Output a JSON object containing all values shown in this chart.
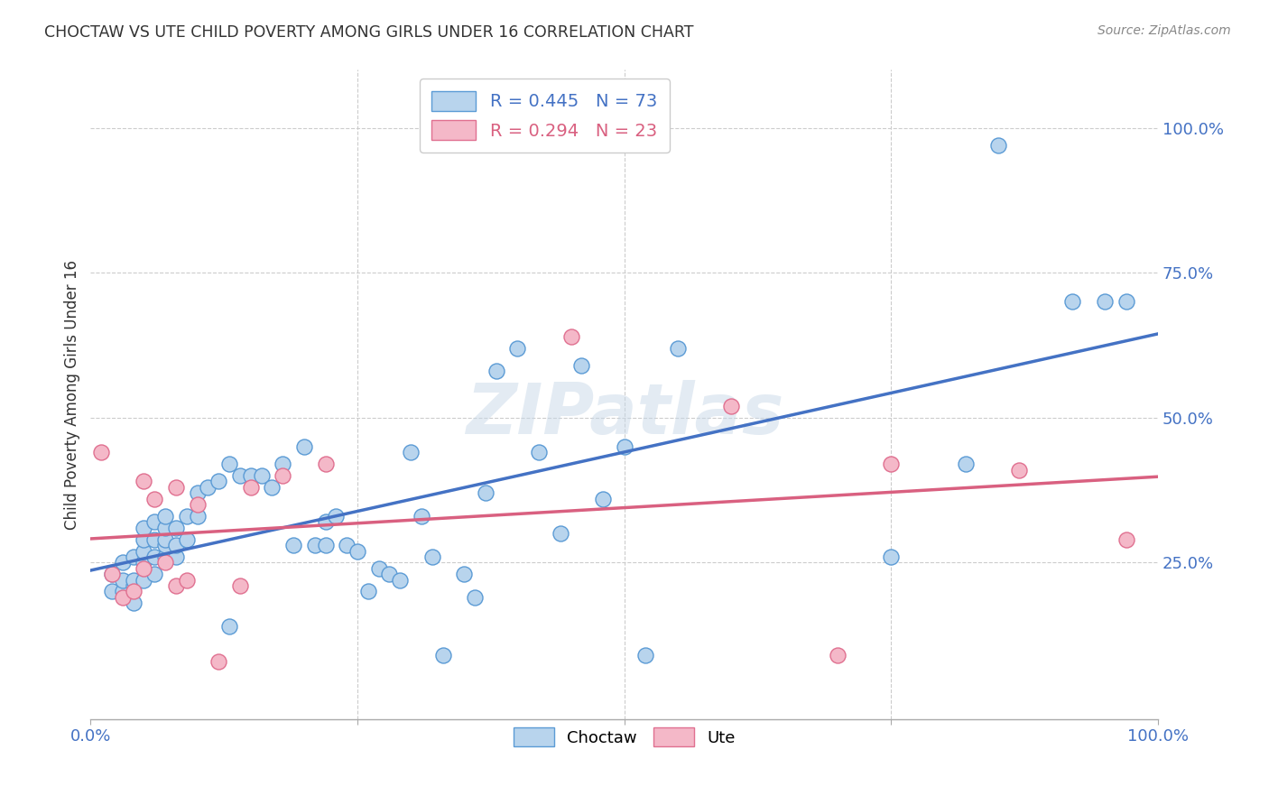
{
  "title": "CHOCTAW VS UTE CHILD POVERTY AMONG GIRLS UNDER 16 CORRELATION CHART",
  "source": "Source: ZipAtlas.com",
  "ylabel": "Child Poverty Among Girls Under 16",
  "x_tick_labels": [
    "0.0%",
    "",
    "",
    "",
    "100.0%"
  ],
  "y_tick_labels": [
    "25.0%",
    "50.0%",
    "75.0%",
    "100.0%"
  ],
  "y_ticks": [
    0.25,
    0.5,
    0.75,
    1.0
  ],
  "xlim": [
    0.0,
    1.0
  ],
  "ylim": [
    -0.02,
    1.1
  ],
  "choctaw_color": "#b8d4ed",
  "choctaw_edge": "#5b9bd5",
  "ute_color": "#f4b8c8",
  "ute_edge": "#e07090",
  "blue_line_color": "#4472c4",
  "pink_line_color": "#d96080",
  "R_choctaw": 0.445,
  "N_choctaw": 73,
  "R_ute": 0.294,
  "N_ute": 23,
  "watermark": "ZIPatlas",
  "choctaw_x": [
    0.02,
    0.02,
    0.03,
    0.03,
    0.03,
    0.04,
    0.04,
    0.04,
    0.04,
    0.05,
    0.05,
    0.05,
    0.05,
    0.05,
    0.06,
    0.06,
    0.06,
    0.06,
    0.07,
    0.07,
    0.07,
    0.07,
    0.07,
    0.08,
    0.08,
    0.08,
    0.09,
    0.09,
    0.1,
    0.1,
    0.11,
    0.12,
    0.13,
    0.13,
    0.14,
    0.15,
    0.16,
    0.17,
    0.18,
    0.19,
    0.2,
    0.21,
    0.22,
    0.22,
    0.23,
    0.24,
    0.25,
    0.26,
    0.27,
    0.28,
    0.29,
    0.3,
    0.31,
    0.32,
    0.33,
    0.35,
    0.36,
    0.37,
    0.38,
    0.4,
    0.42,
    0.44,
    0.46,
    0.48,
    0.5,
    0.52,
    0.55,
    0.75,
    0.82,
    0.85,
    0.92,
    0.95,
    0.97
  ],
  "choctaw_y": [
    0.2,
    0.23,
    0.2,
    0.22,
    0.25,
    0.18,
    0.21,
    0.22,
    0.26,
    0.22,
    0.25,
    0.27,
    0.29,
    0.31,
    0.23,
    0.26,
    0.29,
    0.32,
    0.26,
    0.28,
    0.29,
    0.31,
    0.33,
    0.26,
    0.28,
    0.31,
    0.29,
    0.33,
    0.33,
    0.37,
    0.38,
    0.39,
    0.42,
    0.14,
    0.4,
    0.4,
    0.4,
    0.38,
    0.42,
    0.28,
    0.45,
    0.28,
    0.28,
    0.32,
    0.33,
    0.28,
    0.27,
    0.2,
    0.24,
    0.23,
    0.22,
    0.44,
    0.33,
    0.26,
    0.09,
    0.23,
    0.19,
    0.37,
    0.58,
    0.62,
    0.44,
    0.3,
    0.59,
    0.36,
    0.45,
    0.09,
    0.62,
    0.26,
    0.42,
    0.97,
    0.7,
    0.7,
    0.7
  ],
  "ute_x": [
    0.01,
    0.02,
    0.03,
    0.04,
    0.05,
    0.05,
    0.06,
    0.07,
    0.08,
    0.08,
    0.09,
    0.1,
    0.12,
    0.14,
    0.15,
    0.18,
    0.22,
    0.45,
    0.6,
    0.7,
    0.75,
    0.87,
    0.97
  ],
  "ute_y": [
    0.44,
    0.23,
    0.19,
    0.2,
    0.24,
    0.39,
    0.36,
    0.25,
    0.21,
    0.38,
    0.22,
    0.35,
    0.08,
    0.21,
    0.38,
    0.4,
    0.42,
    0.64,
    0.52,
    0.09,
    0.42,
    0.41,
    0.29
  ]
}
